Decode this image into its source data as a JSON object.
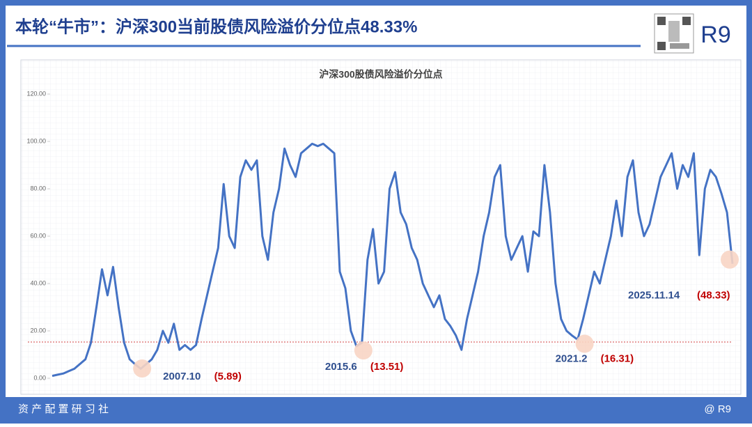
{
  "header": {
    "title": "本轮“牛市”：沪深300当前股债风险溢价分位点48.33%",
    "logo": "R9"
  },
  "footer": {
    "left": "资 产 配 置 研 习 社",
    "right": "@ R9"
  },
  "chart_data": {
    "type": "line",
    "title": "沪深300股债风险溢价分位点",
    "series": [
      {
        "name": "沪深300股债风险溢价分位点",
        "color": "#4472c4",
        "values": [
          1,
          1.5,
          2,
          3,
          4,
          6,
          8,
          15,
          30,
          46,
          35,
          47,
          30,
          15,
          8,
          5.89,
          4,
          6,
          8,
          12,
          20,
          15,
          23,
          12,
          14,
          12,
          14,
          25,
          35,
          45,
          55,
          82,
          60,
          55,
          85,
          92,
          88,
          92,
          60,
          50,
          70,
          80,
          97,
          90,
          85,
          95,
          97,
          99,
          98,
          99,
          97,
          95,
          45,
          38,
          20,
          13.51,
          15,
          50,
          63,
          40,
          45,
          80,
          87,
          70,
          65,
          55,
          50,
          40,
          35,
          30,
          35,
          25,
          22,
          18,
          12,
          25,
          35,
          45,
          60,
          70,
          85,
          90,
          60,
          50,
          55,
          60,
          45,
          62,
          60,
          90,
          70,
          40,
          25,
          20,
          18,
          16.31,
          25,
          35,
          45,
          40,
          50,
          60,
          75,
          60,
          85,
          92,
          70,
          60,
          65,
          75,
          85,
          90,
          95,
          80,
          90,
          85,
          95,
          52,
          80,
          88,
          85,
          78,
          70,
          48.33
        ]
      }
    ],
    "ylim": [
      0,
      120
    ],
    "yticks": [
      {
        "value": 0,
        "label": "0.00"
      },
      {
        "value": 20,
        "label": "20.00"
      },
      {
        "value": 40,
        "label": "40.00"
      },
      {
        "value": 60,
        "label": "60.00"
      },
      {
        "value": 80,
        "label": "80.00"
      },
      {
        "value": 100,
        "label": "100.00"
      },
      {
        "value": 120,
        "label": "120.00"
      }
    ],
    "reference_line": {
      "value": 15.3,
      "color": "#d04040"
    },
    "annotations": [
      {
        "date": "2007.10",
        "value": 5.89,
        "value_label": "(5.89)"
      },
      {
        "date": "2015.6",
        "value": 13.51,
        "value_label": "(13.51)"
      },
      {
        "date": "2021.2",
        "value": 16.31,
        "value_label": "(16.31)"
      },
      {
        "date": "2025.11.14",
        "value": 48.33,
        "value_label": "(48.33)"
      }
    ]
  }
}
